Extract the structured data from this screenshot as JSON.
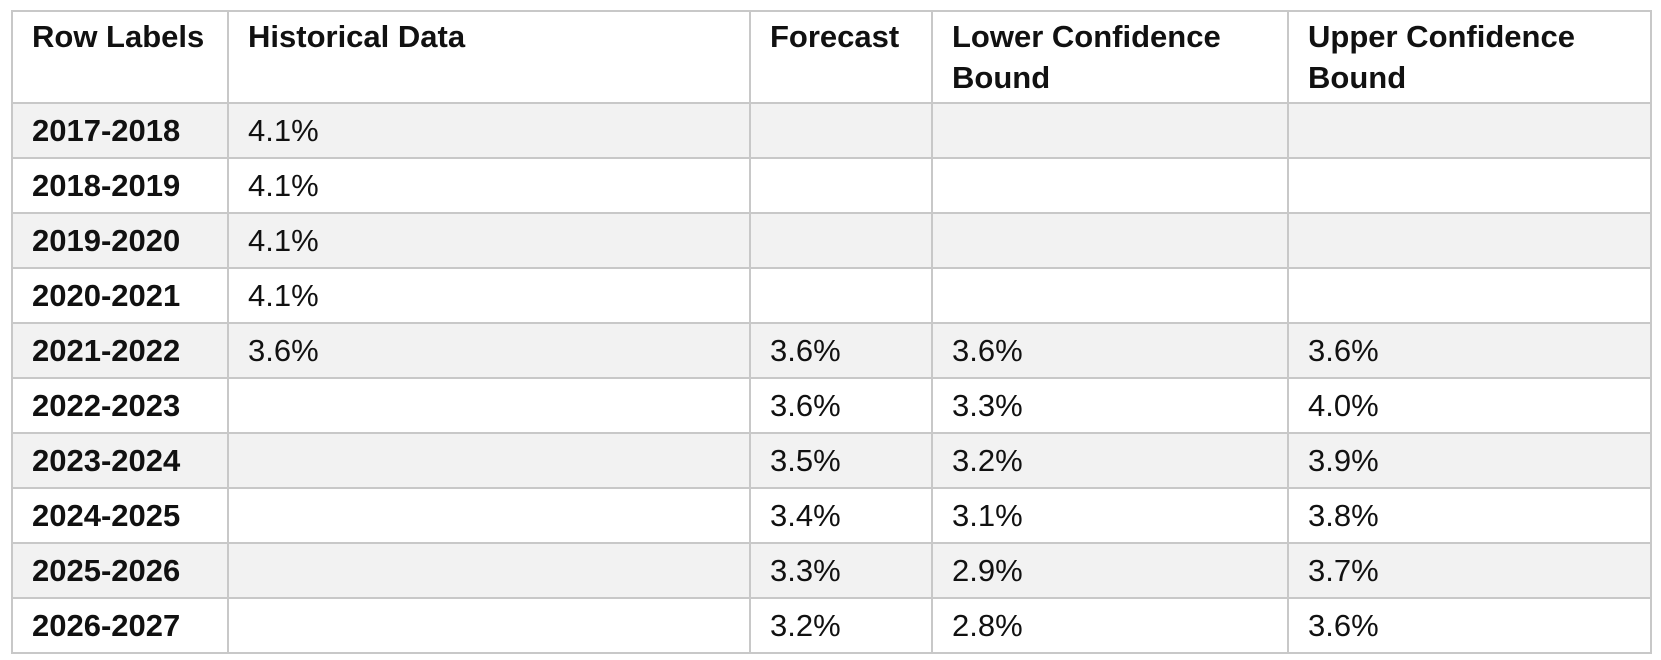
{
  "table": {
    "headers": [
      "Row Labels",
      "Historical Data",
      "Forecast",
      "Lower Confidence Bound",
      "Upper Confidence Bound"
    ],
    "rows": [
      [
        "2017-2018",
        "4.1%",
        "",
        "",
        ""
      ],
      [
        "2018-2019",
        "4.1%",
        "",
        "",
        ""
      ],
      [
        "2019-2020",
        "4.1%",
        "",
        "",
        ""
      ],
      [
        "2020-2021",
        "4.1%",
        "",
        "",
        ""
      ],
      [
        "2021-2022",
        "3.6%",
        "3.6%",
        "3.6%",
        "3.6%"
      ],
      [
        "2022-2023",
        "",
        "3.6%",
        "3.3%",
        "4.0%"
      ],
      [
        "2023-2024",
        "",
        "3.5%",
        "3.2%",
        "3.9%"
      ],
      [
        "2024-2025",
        "",
        "3.4%",
        "3.1%",
        "3.8%"
      ],
      [
        "2025-2026",
        "",
        "3.3%",
        "2.9%",
        "3.7%"
      ],
      [
        "2026-2027",
        "",
        "3.2%",
        "2.8%",
        "3.6%"
      ]
    ]
  }
}
